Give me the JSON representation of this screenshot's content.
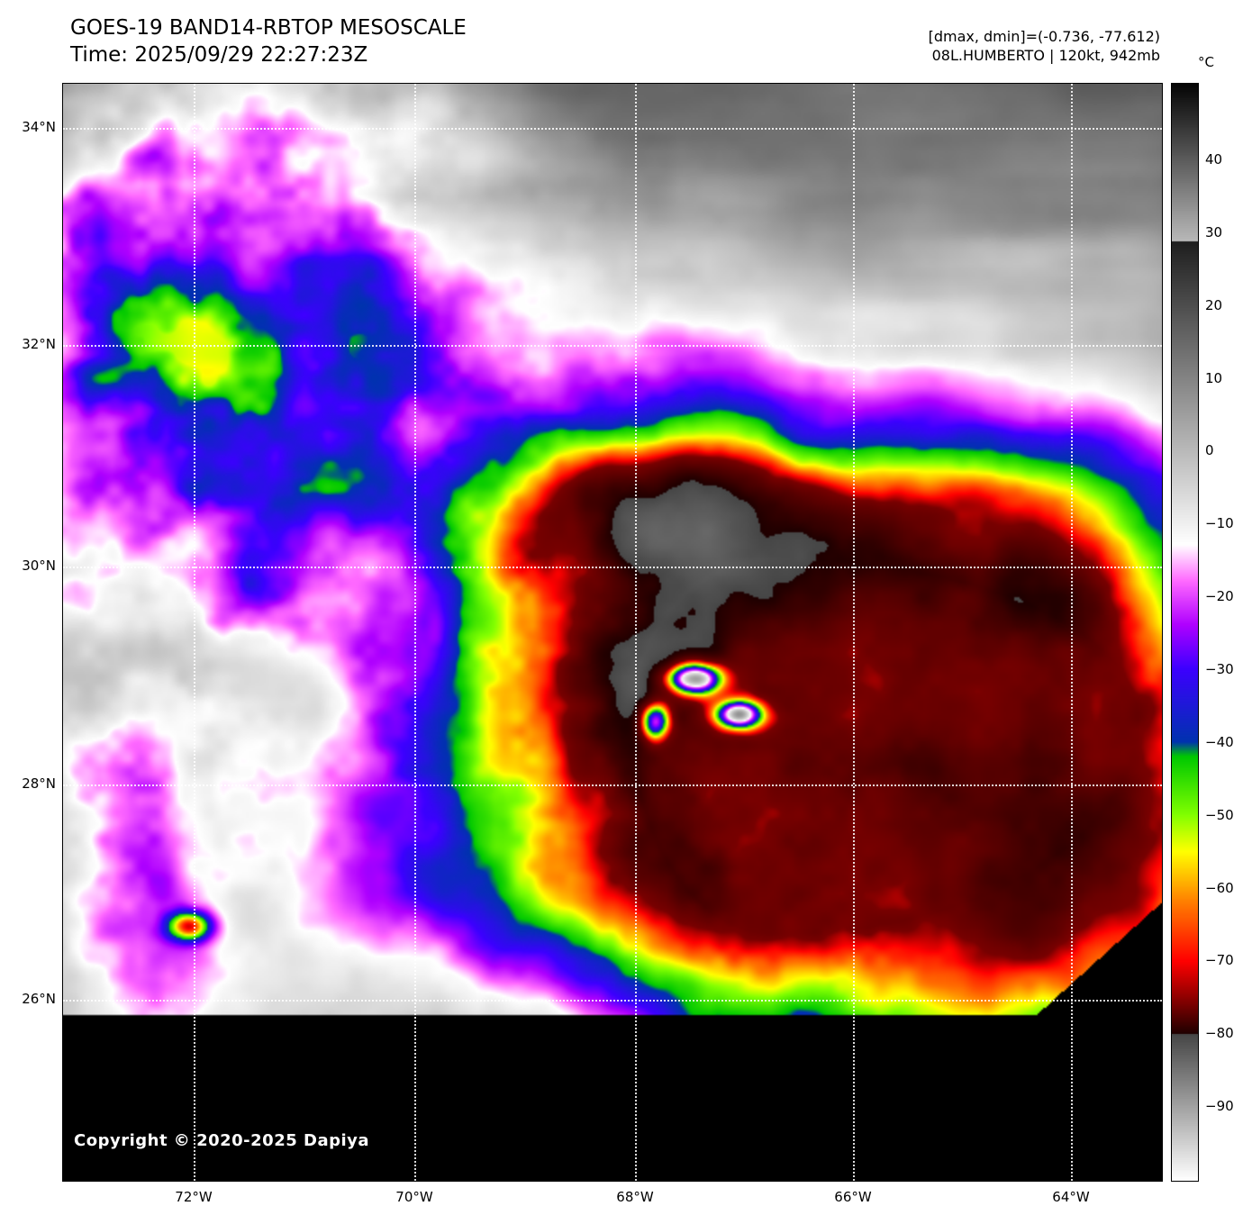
{
  "header": {
    "title": "GOES-19 BAND14-RBTOP MESOSCALE",
    "time": "Time: 2025/09/29 22:27:23Z",
    "range_readout": "[dmax, dmin]=(-0.736, -77.612)",
    "storm_readout": "08L.HUMBERTO | 120kt, 942mb"
  },
  "colorbar": {
    "unit": "°C",
    "ticks": [
      "40",
      "30",
      "20",
      "10",
      "0",
      "−10",
      "−20",
      "−30",
      "−40",
      "−50",
      "−60",
      "−70",
      "−80",
      "−90"
    ]
  },
  "map": {
    "lat_labels": [
      "34°N",
      "32°N",
      "30°N",
      "28°N",
      "26°N"
    ],
    "lon_labels": [
      "72°W",
      "70°W",
      "68°W",
      "66°W",
      "64°W"
    ],
    "copyright": "Copyright © 2020-2025 Dapiya"
  }
}
